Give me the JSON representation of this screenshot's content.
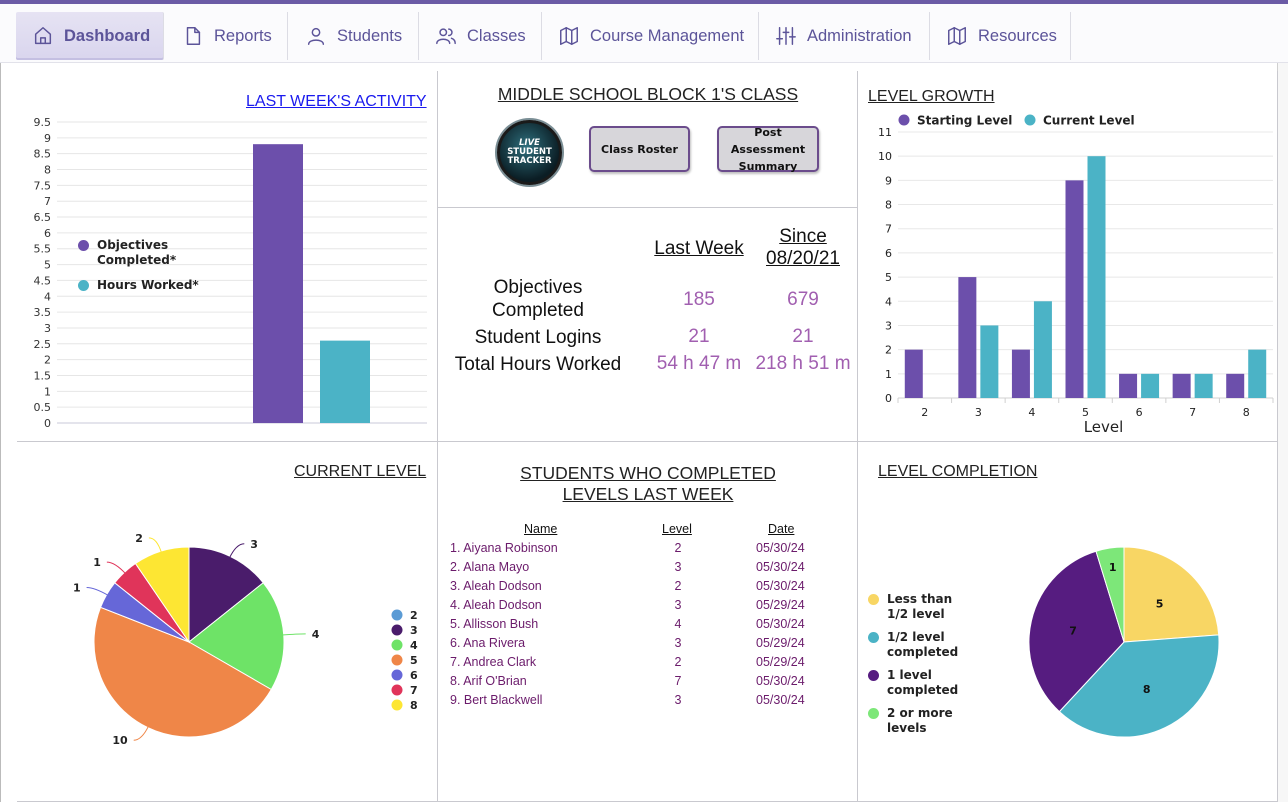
{
  "nav": [
    {
      "label": "Dashboard",
      "icon": "home-icon",
      "active": true
    },
    {
      "label": "Reports",
      "icon": "document-icon"
    },
    {
      "label": "Students",
      "icon": "user-icon"
    },
    {
      "label": "Classes",
      "icon": "users-icon"
    },
    {
      "label": "Course Management",
      "icon": "map-icon"
    },
    {
      "label": "Administration",
      "icon": "sliders-icon"
    },
    {
      "label": "Resources",
      "icon": "map-icon"
    }
  ],
  "activity": {
    "title": "LAST WEEK'S ACTIVITY",
    "chart_data": {
      "type": "bar",
      "title": "LAST WEEK'S ACTIVITY",
      "series": [
        {
          "name": "Objectives Completed*",
          "values": [
            8.8
          ],
          "color": "#6c4fab"
        },
        {
          "name": "Hours Worked*",
          "values": [
            2.6
          ],
          "color": "#4bb3c6"
        }
      ],
      "ylim": [
        0,
        9.5
      ],
      "yticks": [
        "0",
        "0.5",
        "1",
        "1.5",
        "2",
        "2.5",
        "3",
        "3.5",
        "4",
        "4.5",
        "5",
        "5.5",
        "6",
        "6.5",
        "7",
        "7.5",
        "8",
        "8.5",
        "9",
        "9.5"
      ],
      "legend": "left"
    },
    "legend": [
      {
        "label": "Objectives Completed*",
        "color": "#6c4fab"
      },
      {
        "label": "Hours Worked*",
        "color": "#4bb3c6"
      }
    ]
  },
  "class_info": {
    "title": "MIDDLE SCHOOL BLOCK 1'S CLASS",
    "logo_text": [
      "LIVE",
      "STUDENT",
      "TRACKER"
    ],
    "roster_button": "Class Roster",
    "assessment_button": [
      "Post Assessment",
      "Summary"
    ],
    "col_last_week": "Last Week",
    "col_since": [
      "Since",
      "08/20/21"
    ],
    "stats": [
      {
        "label": [
          "Objectives",
          "Completed"
        ],
        "last_week": "185",
        "since": "679"
      },
      {
        "label": [
          "Student Logins"
        ],
        "last_week": "21",
        "since": "21"
      },
      {
        "label": [
          "Total Hours Worked"
        ],
        "last_week": "54 h 47 m",
        "since": "218 h 51 m"
      }
    ]
  },
  "level_growth": {
    "title": "LEVEL GROWTH",
    "chart_data": {
      "type": "bar",
      "title": "LEVEL GROWTH",
      "xlabel": "Level",
      "categories": [
        "2",
        "3",
        "4",
        "5",
        "6",
        "7",
        "8"
      ],
      "series": [
        {
          "name": "Starting Level",
          "values": [
            2,
            5,
            2,
            9,
            1,
            1,
            1
          ],
          "color": "#6c4fab"
        },
        {
          "name": "Current Level",
          "values": [
            0,
            3,
            4,
            10,
            1,
            1,
            2
          ],
          "color": "#4bb3c6"
        }
      ],
      "ylim": [
        0,
        11
      ],
      "yticks": [
        "0",
        "1",
        "2",
        "3",
        "4",
        "5",
        "6",
        "7",
        "8",
        "9",
        "10",
        "11"
      ]
    }
  },
  "current_level": {
    "title": "CURRENT LEVEL",
    "chart_data": {
      "type": "pie",
      "title": "CURRENT LEVEL",
      "slices": [
        {
          "label": "2",
          "value": 0,
          "color": "#5b9bd5"
        },
        {
          "label": "3",
          "value": 3,
          "color": "#4a1c6b"
        },
        {
          "label": "4",
          "value": 4,
          "color": "#6ee367"
        },
        {
          "label": "5",
          "value": 10,
          "color": "#ef8648"
        },
        {
          "label": "6",
          "value": 1,
          "color": "#6667d8"
        },
        {
          "label": "7",
          "value": 1,
          "color": "#e0345a"
        },
        {
          "label": "8",
          "value": 2,
          "color": "#fde633"
        }
      ]
    }
  },
  "completed": {
    "title": [
      "STUDENTS WHO COMPLETED",
      "LEVELS LAST WEEK"
    ],
    "headers": {
      "name": "Name",
      "level": "Level",
      "date": "Date"
    },
    "rows": [
      {
        "name": "1. Aiyana Robinson",
        "level": "2",
        "date": "05/30/24"
      },
      {
        "name": "2. Alana Mayo",
        "level": "3",
        "date": "05/30/24"
      },
      {
        "name": "3. Aleah Dodson",
        "level": "2",
        "date": "05/30/24"
      },
      {
        "name": "4. Aleah Dodson",
        "level": "3",
        "date": "05/29/24"
      },
      {
        "name": "5. Allisson Bush",
        "level": "4",
        "date": "05/30/24"
      },
      {
        "name": "6. Ana Rivera",
        "level": "3",
        "date": "05/29/24"
      },
      {
        "name": "7. Andrea Clark",
        "level": "2",
        "date": "05/29/24"
      },
      {
        "name": "8. Arif O'Brian",
        "level": "7",
        "date": "05/30/24"
      },
      {
        "name": "9. Bert Blackwell",
        "level": "3",
        "date": "05/30/24"
      }
    ]
  },
  "level_completion": {
    "title": "LEVEL COMPLETION",
    "chart_data": {
      "type": "pie",
      "title": "LEVEL COMPLETION",
      "slices": [
        {
          "label": "Less than 1/2 level",
          "value": 5,
          "color": "#f8d664"
        },
        {
          "label": "1/2 level completed",
          "value": 8,
          "color": "#4bb3c6"
        },
        {
          "label": "1 level completed",
          "value": 7,
          "color": "#561c80"
        },
        {
          "label": "2 or more levels",
          "value": 1,
          "color": "#7de779"
        }
      ]
    },
    "legend": [
      {
        "label": [
          "Less than",
          "1/2 level"
        ],
        "color": "#f8d664"
      },
      {
        "label": [
          "1/2 level",
          "completed"
        ],
        "color": "#4bb3c6"
      },
      {
        "label": [
          "1 level",
          "completed"
        ],
        "color": "#561c80"
      },
      {
        "label": [
          "2 or more",
          "levels"
        ],
        "color": "#7de779"
      }
    ]
  }
}
